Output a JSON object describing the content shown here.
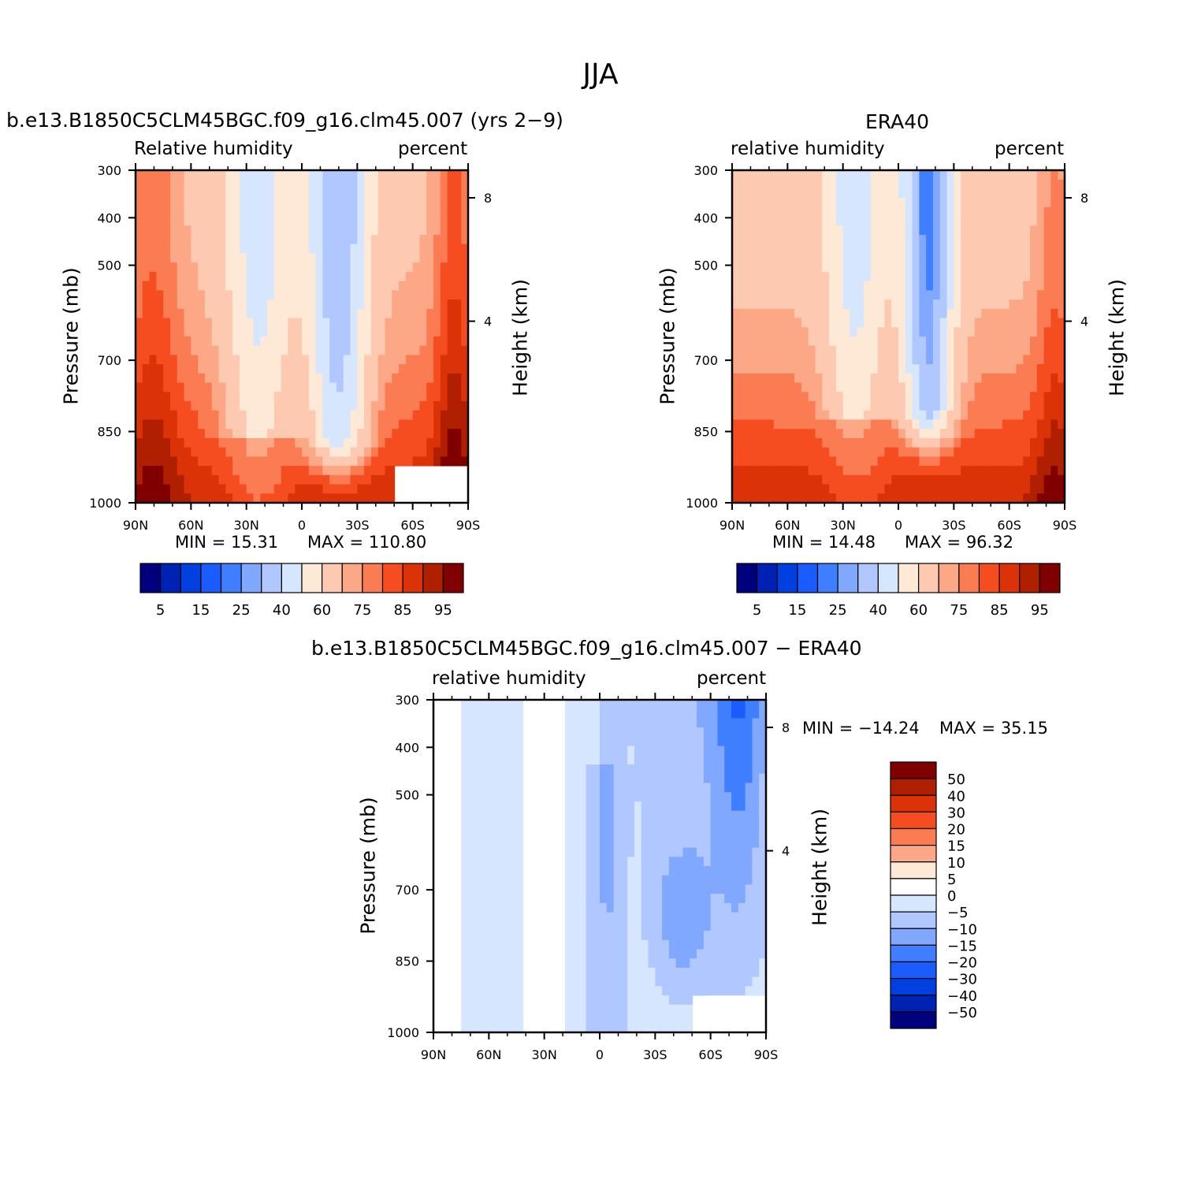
{
  "figure_title": "JJA",
  "chart_data": [
    {
      "type": "heatmap",
      "title": "b.e13.B1850C5CLM45BGC.f09_g16.clm45.007 (yrs 2−9)",
      "left_label": "Relative humidity",
      "right_label": "percent",
      "xlabel": "",
      "ylabel": "Pressure (mb)",
      "ylabel_right": "Height (km)",
      "x_ticks": [
        "90N",
        "60N",
        "30N",
        "0",
        "30S",
        "60S",
        "90S"
      ],
      "y_ticks": [
        "300",
        "400",
        "500",
        "700",
        "850",
        "1000"
      ],
      "y_right_ticks": [
        "8",
        "4"
      ],
      "min_text": "MIN =   15.31",
      "max_text": "MAX = 110.80",
      "colorbar_levels": [
        "5",
        "15",
        "25",
        "40",
        "60",
        "75",
        "85",
        "95"
      ],
      "colorbar_colors": [
        "#00007f",
        "#0022b4",
        "#0040e0",
        "#1a5cff",
        "#3f7fff",
        "#80a8ff",
        "#b0c8ff",
        "#d6e6ff",
        "#fee8d6",
        "#fdc9b0",
        "#fca886",
        "#fb7c52",
        "#f54d20",
        "#dc3208",
        "#b02000",
        "#800000"
      ]
    },
    {
      "type": "heatmap",
      "title": "ERA40",
      "left_label": "relative humidity",
      "right_label": "percent",
      "xlabel": "",
      "ylabel": "Pressure (mb)",
      "ylabel_right": "Height (km)",
      "x_ticks": [
        "90N",
        "60N",
        "30N",
        "0",
        "30S",
        "60S",
        "90S"
      ],
      "y_ticks": [
        "300",
        "400",
        "500",
        "700",
        "850",
        "1000"
      ],
      "y_right_ticks": [
        "8",
        "4"
      ],
      "min_text": "MIN =   14.48",
      "max_text": "MAX =   96.32",
      "colorbar_levels": [
        "5",
        "15",
        "25",
        "40",
        "60",
        "75",
        "85",
        "95"
      ]
    },
    {
      "type": "heatmap",
      "title": "b.e13.B1850C5CLM45BGC.f09_g16.clm45.007 − ERA40",
      "left_label": "relative humidity",
      "right_label": "percent",
      "xlabel": "",
      "ylabel": "Pressure (mb)",
      "ylabel_right": "Height (km)",
      "x_ticks": [
        "90N",
        "60N",
        "30N",
        "0",
        "30S",
        "60S",
        "90S"
      ],
      "y_ticks": [
        "300",
        "400",
        "500",
        "700",
        "850",
        "1000"
      ],
      "y_right_ticks": [
        "8",
        "4"
      ],
      "min_text": "MIN = −14.24",
      "max_text": "MAX =   35.15",
      "colorbar_levels": [
        "50",
        "40",
        "30",
        "20",
        "15",
        "10",
        "5",
        "0",
        "−5",
        "−10",
        "−15",
        "−20",
        "−30",
        "−40",
        "−50"
      ],
      "colorbar_colors": [
        "#800000",
        "#b02000",
        "#dc3208",
        "#f54d20",
        "#fb7c52",
        "#fca886",
        "#fee8d6",
        "#ffffff",
        "#d6e6ff",
        "#b0c8ff",
        "#80a8ff",
        "#3f7fff",
        "#1a5cff",
        "#0040e0",
        "#0022b4",
        "#00007f"
      ]
    }
  ]
}
